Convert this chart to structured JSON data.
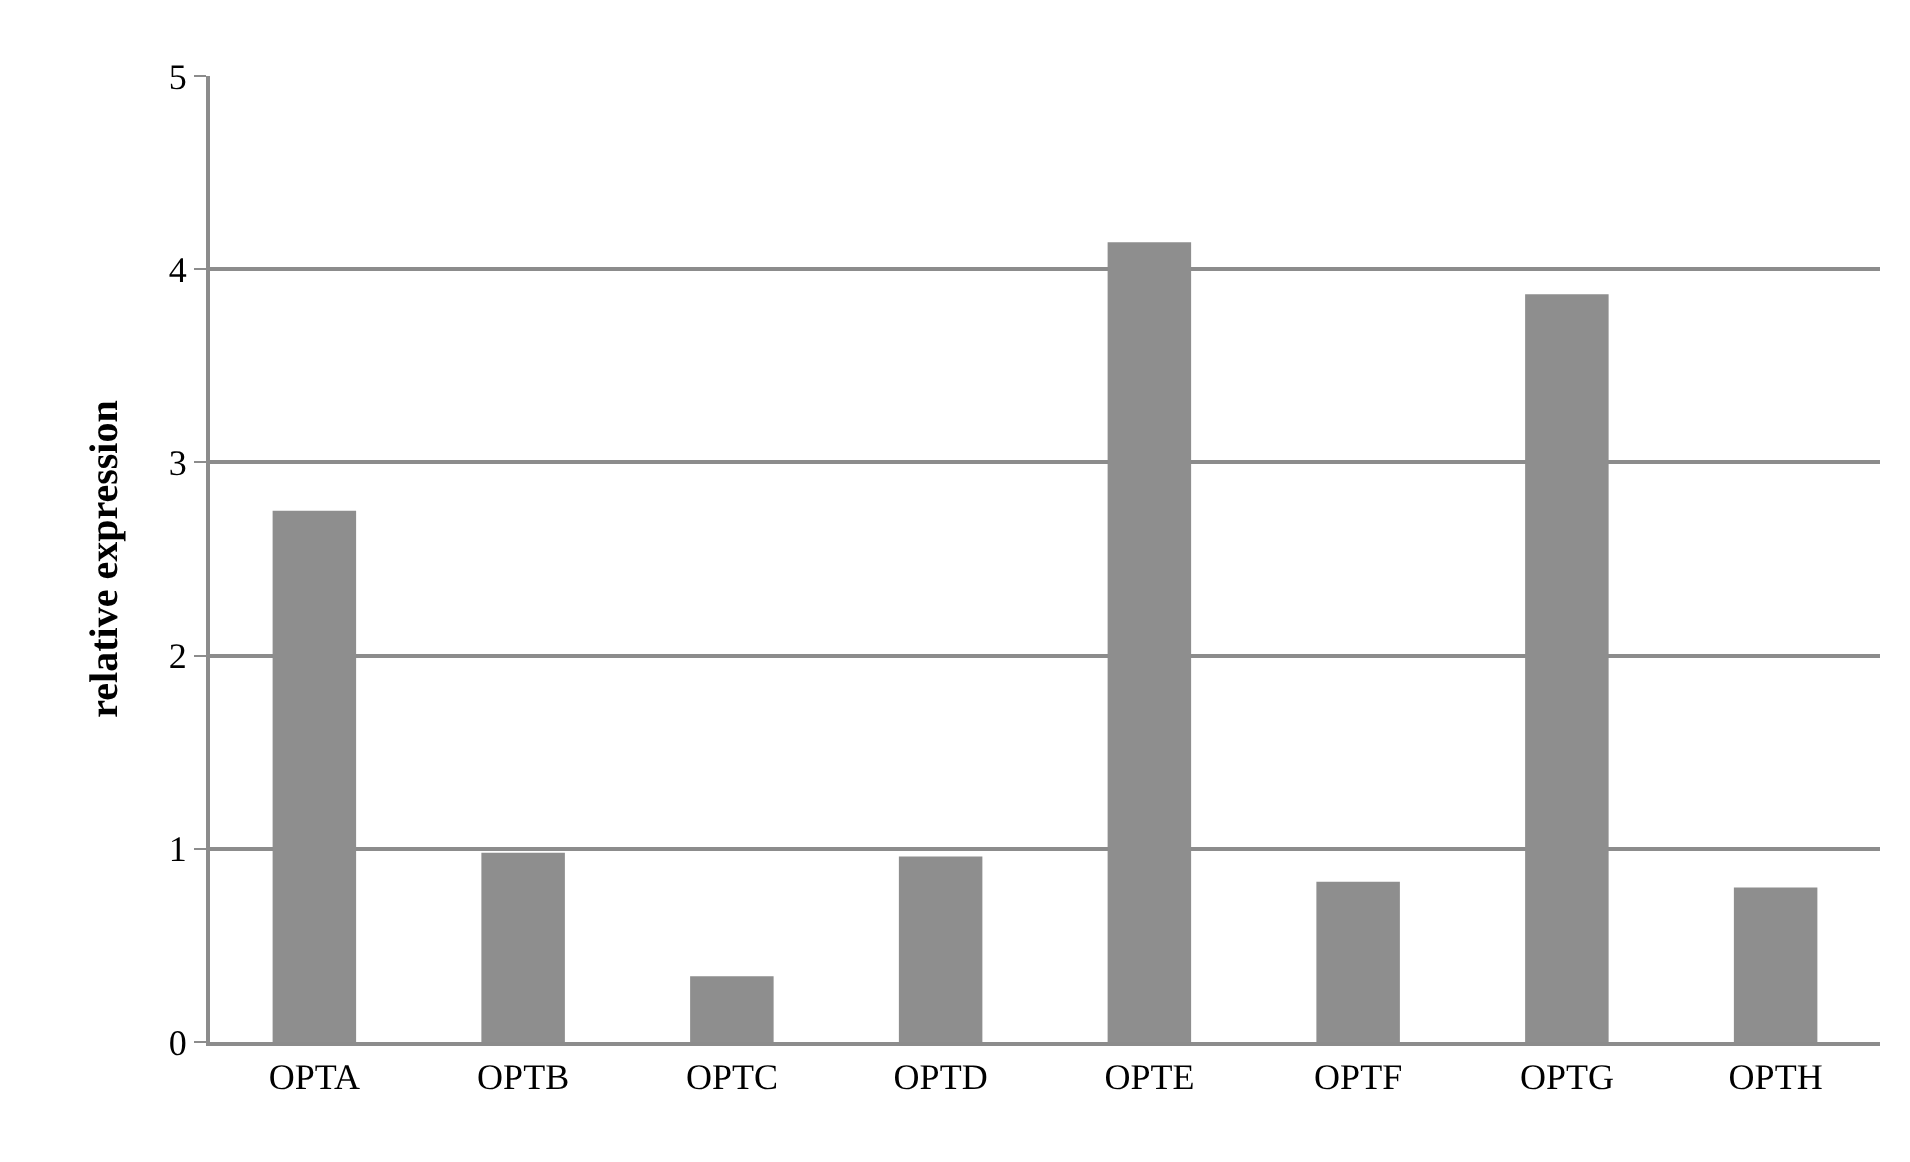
{
  "chart_data": {
    "type": "bar",
    "ylabel": "relative expression",
    "categories": [
      "OPTA",
      "OPTB",
      "OPTC",
      "OPTD",
      "OPTE",
      "OPTF",
      "OPTG",
      "OPTH"
    ],
    "values": [
      2.75,
      0.98,
      0.34,
      0.96,
      4.14,
      0.83,
      3.87,
      0.8
    ],
    "color": "#8e8e8e",
    "ylim": [
      0,
      5
    ],
    "yticks": [
      0,
      1,
      2,
      3,
      4,
      5
    ],
    "grid": "y"
  }
}
